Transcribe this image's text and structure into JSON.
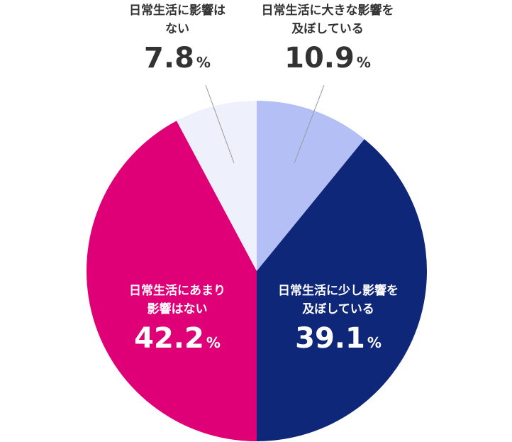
{
  "chart_data": {
    "type": "pie",
    "categories": [
      "日常生活に大きな影響を\n及ぼしている",
      "日常生活に少し影響を\n及ぼしている",
      "日常生活にあまり\n影響はない",
      "日常生活に影響は\nない"
    ],
    "values": [
      10.9,
      39.1,
      42.2,
      7.8
    ],
    "unit": "%",
    "colors": [
      "#b3bff5",
      "#0e2778",
      "#df0077",
      "#eef0fb"
    ]
  }
}
